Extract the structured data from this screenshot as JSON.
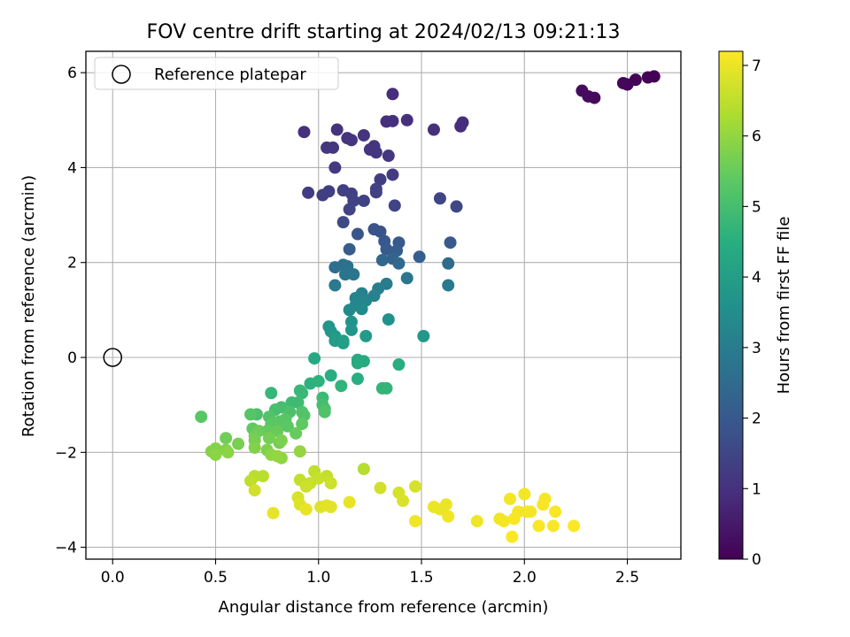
{
  "chart_data": {
    "type": "scatter",
    "title": "FOV centre drift starting at 2024/02/13 09:21:13",
    "xlabel": "Angular distance from reference (arcmin)",
    "ylabel": "Rotation from reference (arcmin)",
    "xlim": [
      -0.13,
      2.76
    ],
    "ylim": [
      -4.25,
      6.45
    ],
    "xticks": [
      0.0,
      0.5,
      1.0,
      1.5,
      2.0,
      2.5
    ],
    "xtick_labels": [
      "0.0",
      "0.5",
      "1.0",
      "1.5",
      "2.0",
      "2.5"
    ],
    "yticks": [
      -4,
      -2,
      0,
      2,
      4,
      6
    ],
    "ytick_labels": [
      "−4",
      "−2",
      "0",
      "2",
      "4",
      "6"
    ],
    "grid": true,
    "legend": {
      "position": "top-left",
      "label": "Reference platepar"
    },
    "reference_point": {
      "x": 0.0,
      "y": 0.0
    },
    "colorbar": {
      "label": "Hours from first FF file",
      "colormap": "viridis",
      "min": 0,
      "max": 7.2,
      "ticks": [
        0,
        1,
        2,
        3,
        4,
        5,
        6,
        7
      ],
      "tick_labels": [
        "0",
        "1",
        "2",
        "3",
        "4",
        "5",
        "6",
        "7"
      ]
    },
    "points": [
      {
        "x": 2.63,
        "y": 5.92,
        "c": 0.02
      },
      {
        "x": 2.6,
        "y": 5.9,
        "c": 0.05
      },
      {
        "x": 2.54,
        "y": 5.85,
        "c": 0.08
      },
      {
        "x": 2.5,
        "y": 5.75,
        "c": 0.1
      },
      {
        "x": 2.48,
        "y": 5.78,
        "c": 0.12
      },
      {
        "x": 2.34,
        "y": 5.47,
        "c": 0.18
      },
      {
        "x": 2.31,
        "y": 5.5,
        "c": 0.2
      },
      {
        "x": 2.28,
        "y": 5.62,
        "c": 0.22
      },
      {
        "x": 1.36,
        "y": 5.55,
        "c": 0.9
      },
      {
        "x": 1.33,
        "y": 4.97,
        "c": 0.95
      },
      {
        "x": 1.36,
        "y": 4.98,
        "c": 0.96
      },
      {
        "x": 1.43,
        "y": 5.0,
        "c": 0.97
      },
      {
        "x": 1.7,
        "y": 4.95,
        "c": 0.92
      },
      {
        "x": 1.69,
        "y": 4.87,
        "c": 0.93
      },
      {
        "x": 1.56,
        "y": 4.8,
        "c": 0.98
      },
      {
        "x": 0.93,
        "y": 4.75,
        "c": 1.0
      },
      {
        "x": 1.09,
        "y": 4.8,
        "c": 1.02
      },
      {
        "x": 1.14,
        "y": 4.62,
        "c": 1.05
      },
      {
        "x": 1.16,
        "y": 4.58,
        "c": 1.06
      },
      {
        "x": 1.22,
        "y": 4.68,
        "c": 1.07
      },
      {
        "x": 1.27,
        "y": 4.45,
        "c": 1.08
      },
      {
        "x": 1.25,
        "y": 4.38,
        "c": 1.09
      },
      {
        "x": 1.28,
        "y": 4.32,
        "c": 1.1
      },
      {
        "x": 1.04,
        "y": 4.42,
        "c": 1.12
      },
      {
        "x": 1.07,
        "y": 4.42,
        "c": 1.13
      },
      {
        "x": 1.34,
        "y": 4.25,
        "c": 1.15
      },
      {
        "x": 1.08,
        "y": 4.0,
        "c": 1.2
      },
      {
        "x": 1.36,
        "y": 3.85,
        "c": 1.25
      },
      {
        "x": 1.3,
        "y": 3.75,
        "c": 1.28
      },
      {
        "x": 0.95,
        "y": 3.47,
        "c": 1.3
      },
      {
        "x": 1.02,
        "y": 3.42,
        "c": 1.32
      },
      {
        "x": 1.05,
        "y": 3.5,
        "c": 1.33
      },
      {
        "x": 1.12,
        "y": 3.52,
        "c": 1.35
      },
      {
        "x": 1.16,
        "y": 3.45,
        "c": 1.36
      },
      {
        "x": 1.28,
        "y": 3.48,
        "c": 1.37
      },
      {
        "x": 1.28,
        "y": 3.55,
        "c": 1.38
      },
      {
        "x": 1.22,
        "y": 3.3,
        "c": 1.4
      },
      {
        "x": 1.17,
        "y": 3.3,
        "c": 1.42
      },
      {
        "x": 1.15,
        "y": 3.12,
        "c": 1.44
      },
      {
        "x": 1.37,
        "y": 3.2,
        "c": 1.45
      },
      {
        "x": 1.59,
        "y": 3.35,
        "c": 1.5
      },
      {
        "x": 1.67,
        "y": 3.18,
        "c": 1.55
      },
      {
        "x": 1.12,
        "y": 2.85,
        "c": 1.6
      },
      {
        "x": 1.27,
        "y": 2.7,
        "c": 1.8
      },
      {
        "x": 1.3,
        "y": 2.65,
        "c": 1.85
      },
      {
        "x": 1.19,
        "y": 2.6,
        "c": 1.9
      },
      {
        "x": 1.32,
        "y": 2.45,
        "c": 1.95
      },
      {
        "x": 1.39,
        "y": 2.42,
        "c": 2.0
      },
      {
        "x": 1.64,
        "y": 2.42,
        "c": 2.0
      },
      {
        "x": 1.33,
        "y": 2.28,
        "c": 2.05
      },
      {
        "x": 1.38,
        "y": 2.25,
        "c": 2.1
      },
      {
        "x": 1.15,
        "y": 2.28,
        "c": 2.1
      },
      {
        "x": 1.49,
        "y": 2.12,
        "c": 2.2
      },
      {
        "x": 1.36,
        "y": 2.08,
        "c": 2.3
      },
      {
        "x": 1.31,
        "y": 2.05,
        "c": 2.4
      },
      {
        "x": 1.39,
        "y": 1.98,
        "c": 2.45
      },
      {
        "x": 1.63,
        "y": 1.98,
        "c": 2.5
      },
      {
        "x": 1.08,
        "y": 1.9,
        "c": 2.6
      },
      {
        "x": 1.12,
        "y": 1.95,
        "c": 2.65
      },
      {
        "x": 1.14,
        "y": 1.92,
        "c": 2.7
      },
      {
        "x": 1.13,
        "y": 1.75,
        "c": 2.75
      },
      {
        "x": 1.17,
        "y": 1.75,
        "c": 2.8
      },
      {
        "x": 1.43,
        "y": 1.67,
        "c": 2.85
      },
      {
        "x": 1.08,
        "y": 1.52,
        "c": 2.9
      },
      {
        "x": 1.63,
        "y": 1.52,
        "c": 2.9
      },
      {
        "x": 1.33,
        "y": 1.55,
        "c": 3.0
      },
      {
        "x": 1.29,
        "y": 1.45,
        "c": 3.05
      },
      {
        "x": 1.21,
        "y": 1.35,
        "c": 3.1
      },
      {
        "x": 1.27,
        "y": 1.3,
        "c": 3.15
      },
      {
        "x": 1.18,
        "y": 1.25,
        "c": 3.2
      },
      {
        "x": 1.23,
        "y": 1.2,
        "c": 3.25
      },
      {
        "x": 1.18,
        "y": 1.1,
        "c": 3.3
      },
      {
        "x": 1.15,
        "y": 1.0,
        "c": 3.4
      },
      {
        "x": 1.21,
        "y": 1.02,
        "c": 3.4
      },
      {
        "x": 1.34,
        "y": 0.8,
        "c": 3.6
      },
      {
        "x": 1.16,
        "y": 0.75,
        "c": 3.65
      },
      {
        "x": 1.05,
        "y": 0.65,
        "c": 3.7
      },
      {
        "x": 1.06,
        "y": 0.55,
        "c": 3.75
      },
      {
        "x": 1.16,
        "y": 0.58,
        "c": 3.75
      },
      {
        "x": 1.51,
        "y": 0.45,
        "c": 3.8
      },
      {
        "x": 1.08,
        "y": 0.45,
        "c": 3.85
      },
      {
        "x": 1.23,
        "y": 0.45,
        "c": 3.9
      },
      {
        "x": 1.08,
        "y": 0.35,
        "c": 3.95
      },
      {
        "x": 1.12,
        "y": 0.35,
        "c": 4.0
      },
      {
        "x": 1.12,
        "y": 0.3,
        "c": 4.0
      },
      {
        "x": 0.98,
        "y": -0.02,
        "c": 4.3
      },
      {
        "x": 1.19,
        "y": -0.05,
        "c": 4.3
      },
      {
        "x": 1.22,
        "y": -0.08,
        "c": 4.35
      },
      {
        "x": 1.19,
        "y": -0.12,
        "c": 4.4
      },
      {
        "x": 1.39,
        "y": -0.15,
        "c": 4.45
      },
      {
        "x": 1.06,
        "y": -0.38,
        "c": 4.5
      },
      {
        "x": 1.19,
        "y": -0.45,
        "c": 4.5
      },
      {
        "x": 0.96,
        "y": -0.55,
        "c": 4.6
      },
      {
        "x": 1.0,
        "y": -0.5,
        "c": 4.6
      },
      {
        "x": 1.11,
        "y": -0.6,
        "c": 4.65
      },
      {
        "x": 1.31,
        "y": -0.65,
        "c": 4.7
      },
      {
        "x": 1.33,
        "y": -0.65,
        "c": 4.7
      },
      {
        "x": 0.77,
        "y": -0.75,
        "c": 4.75
      },
      {
        "x": 0.91,
        "y": -0.7,
        "c": 4.8
      },
      {
        "x": 0.92,
        "y": -0.75,
        "c": 4.8
      },
      {
        "x": 1.02,
        "y": -0.85,
        "c": 4.85
      },
      {
        "x": 0.87,
        "y": -0.95,
        "c": 4.9
      },
      {
        "x": 0.9,
        "y": -0.95,
        "c": 4.9
      },
      {
        "x": 0.82,
        "y": -1.05,
        "c": 5.0
      },
      {
        "x": 1.02,
        "y": -1.0,
        "c": 5.0
      },
      {
        "x": 0.79,
        "y": -1.1,
        "c": 5.05
      },
      {
        "x": 1.03,
        "y": -1.08,
        "c": 5.05
      },
      {
        "x": 0.7,
        "y": -1.2,
        "c": 5.1
      },
      {
        "x": 0.86,
        "y": -1.15,
        "c": 5.1
      },
      {
        "x": 0.92,
        "y": -1.15,
        "c": 5.15
      },
      {
        "x": 1.03,
        "y": -1.15,
        "c": 5.15
      },
      {
        "x": 0.93,
        "y": -1.22,
        "c": 5.2
      },
      {
        "x": 0.76,
        "y": -1.25,
        "c": 5.2
      },
      {
        "x": 0.84,
        "y": -1.3,
        "c": 5.25
      },
      {
        "x": 0.67,
        "y": -1.2,
        "c": 5.25
      },
      {
        "x": 0.43,
        "y": -1.25,
        "c": 5.3
      },
      {
        "x": 0.81,
        "y": -1.35,
        "c": 5.3
      },
      {
        "x": 0.77,
        "y": -1.4,
        "c": 5.35
      },
      {
        "x": 0.85,
        "y": -1.45,
        "c": 5.35
      },
      {
        "x": 0.92,
        "y": -1.4,
        "c": 5.4
      },
      {
        "x": 0.68,
        "y": -1.5,
        "c": 5.4
      },
      {
        "x": 0.75,
        "y": -1.55,
        "c": 5.45
      },
      {
        "x": 0.8,
        "y": -1.55,
        "c": 5.5
      },
      {
        "x": 0.89,
        "y": -1.6,
        "c": 5.5
      },
      {
        "x": 0.71,
        "y": -1.55,
        "c": 5.55
      },
      {
        "x": 0.55,
        "y": -1.7,
        "c": 5.6
      },
      {
        "x": 0.69,
        "y": -1.65,
        "c": 5.6
      },
      {
        "x": 0.76,
        "y": -1.7,
        "c": 5.65
      },
      {
        "x": 0.81,
        "y": -1.8,
        "c": 5.65
      },
      {
        "x": 0.69,
        "y": -1.75,
        "c": 5.7
      },
      {
        "x": 0.61,
        "y": -1.82,
        "c": 5.7
      },
      {
        "x": 0.82,
        "y": -1.75,
        "c": 5.75
      },
      {
        "x": 0.75,
        "y": -1.95,
        "c": 5.75
      },
      {
        "x": 0.69,
        "y": -1.9,
        "c": 5.8
      },
      {
        "x": 0.55,
        "y": -1.95,
        "c": 5.8
      },
      {
        "x": 0.5,
        "y": -1.92,
        "c": 5.85
      },
      {
        "x": 0.48,
        "y": -1.98,
        "c": 5.85
      },
      {
        "x": 0.56,
        "y": -2.0,
        "c": 5.9
      },
      {
        "x": 0.5,
        "y": -2.05,
        "c": 5.9
      },
      {
        "x": 0.77,
        "y": -2.05,
        "c": 5.95
      },
      {
        "x": 0.82,
        "y": -2.12,
        "c": 5.95
      },
      {
        "x": 0.8,
        "y": -2.08,
        "c": 6.0
      },
      {
        "x": 0.91,
        "y": -1.98,
        "c": 6.0
      },
      {
        "x": 1.22,
        "y": -2.35,
        "c": 6.4
      },
      {
        "x": 0.69,
        "y": -2.5,
        "c": 6.45
      },
      {
        "x": 0.73,
        "y": -2.5,
        "c": 6.45
      },
      {
        "x": 0.67,
        "y": -2.6,
        "c": 6.5
      },
      {
        "x": 0.98,
        "y": -2.4,
        "c": 6.5
      },
      {
        "x": 1.04,
        "y": -2.5,
        "c": 6.55
      },
      {
        "x": 0.91,
        "y": -2.58,
        "c": 6.55
      },
      {
        "x": 0.96,
        "y": -2.65,
        "c": 6.6
      },
      {
        "x": 1.0,
        "y": -2.55,
        "c": 6.6
      },
      {
        "x": 1.06,
        "y": -2.65,
        "c": 6.65
      },
      {
        "x": 0.94,
        "y": -2.72,
        "c": 6.65
      },
      {
        "x": 0.69,
        "y": -2.8,
        "c": 6.7
      },
      {
        "x": 1.3,
        "y": -2.75,
        "c": 6.7
      },
      {
        "x": 1.47,
        "y": -2.72,
        "c": 6.75
      },
      {
        "x": 1.39,
        "y": -2.85,
        "c": 6.75
      },
      {
        "x": 0.9,
        "y": -2.95,
        "c": 6.8
      },
      {
        "x": 1.41,
        "y": -3.02,
        "c": 6.8
      },
      {
        "x": 0.91,
        "y": -3.1,
        "c": 6.85
      },
      {
        "x": 1.01,
        "y": -3.15,
        "c": 6.85
      },
      {
        "x": 1.04,
        "y": -3.12,
        "c": 6.9
      },
      {
        "x": 1.06,
        "y": -3.15,
        "c": 6.9
      },
      {
        "x": 1.15,
        "y": -3.05,
        "c": 6.95
      },
      {
        "x": 0.94,
        "y": -3.2,
        "c": 6.95
      },
      {
        "x": 0.78,
        "y": -3.28,
        "c": 6.95
      },
      {
        "x": 1.56,
        "y": -3.15,
        "c": 7.0
      },
      {
        "x": 1.59,
        "y": -3.2,
        "c": 7.0
      },
      {
        "x": 1.62,
        "y": -3.1,
        "c": 7.0
      },
      {
        "x": 1.63,
        "y": -3.35,
        "c": 7.05
      },
      {
        "x": 1.47,
        "y": -3.45,
        "c": 7.05
      },
      {
        "x": 1.77,
        "y": -3.45,
        "c": 7.05
      },
      {
        "x": 1.88,
        "y": -3.4,
        "c": 7.05
      },
      {
        "x": 1.9,
        "y": -3.45,
        "c": 7.08
      },
      {
        "x": 1.93,
        "y": -2.98,
        "c": 7.08
      },
      {
        "x": 2.0,
        "y": -2.88,
        "c": 7.08
      },
      {
        "x": 1.97,
        "y": -3.25,
        "c": 7.1
      },
      {
        "x": 2.01,
        "y": -3.25,
        "c": 7.1
      },
      {
        "x": 2.03,
        "y": -3.25,
        "c": 7.1
      },
      {
        "x": 1.95,
        "y": -3.4,
        "c": 7.12
      },
      {
        "x": 2.1,
        "y": -2.98,
        "c": 7.12
      },
      {
        "x": 2.09,
        "y": -3.1,
        "c": 7.12
      },
      {
        "x": 2.15,
        "y": -3.25,
        "c": 7.15
      },
      {
        "x": 2.14,
        "y": -3.55,
        "c": 7.15
      },
      {
        "x": 2.07,
        "y": -3.55,
        "c": 7.15
      },
      {
        "x": 2.24,
        "y": -3.55,
        "c": 7.18
      },
      {
        "x": 1.94,
        "y": -3.78,
        "c": 7.18
      }
    ]
  }
}
